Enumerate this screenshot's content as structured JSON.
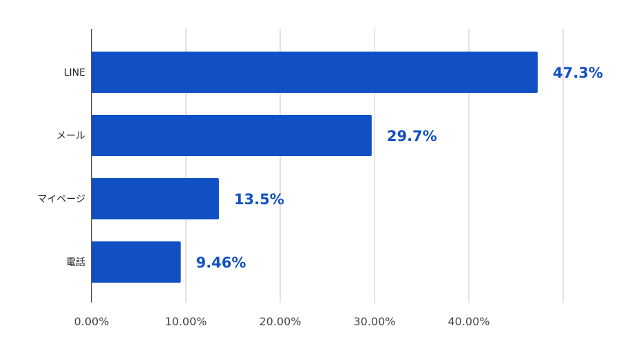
{
  "chart_data": {
    "type": "bar",
    "orientation": "horizontal",
    "categories": [
      "LINE",
      "メール",
      "マイページ",
      "電話"
    ],
    "values": [
      47.3,
      29.7,
      13.5,
      9.46
    ],
    "value_labels": [
      "47.3%",
      "29.7%",
      "13.5%",
      "9.46%"
    ],
    "title": "",
    "xlabel": "",
    "ylabel": "",
    "xlim": [
      0,
      50
    ],
    "x_ticks": [
      0,
      10,
      20,
      30,
      40
    ],
    "x_tick_labels": [
      "0.00%",
      "10.00%",
      "20.00%",
      "30.00%",
      "40.00%"
    ],
    "grid": true,
    "legend": "none",
    "colors": {
      "bar": "#1150c4",
      "value_label": "#1150c4",
      "grid": "#d0d0d0",
      "axis": "#333333"
    }
  }
}
